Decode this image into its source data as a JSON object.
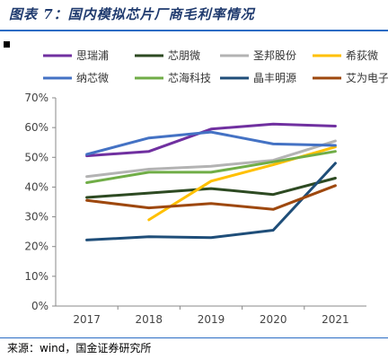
{
  "figure_title": "图表 7：国内模拟芯片厂商毛利率情况",
  "source": "来源：wind，国金证券研究所",
  "chart_data": {
    "type": "line",
    "title": "",
    "xlabel": "",
    "ylabel": "",
    "x": [
      "2017",
      "2018",
      "2019",
      "2020",
      "2021"
    ],
    "y_ticks": [
      "0%",
      "10%",
      "20%",
      "30%",
      "40%",
      "50%",
      "60%",
      "70%"
    ],
    "ylim": [
      0,
      70
    ],
    "grid": false,
    "legend_position": "top",
    "series": [
      {
        "name": "思瑞浦",
        "color": "#7030a0",
        "values": [
          50.5,
          52.0,
          59.5,
          61.2,
          60.5
        ]
      },
      {
        "name": "芯朋微",
        "color": "#2d4a22",
        "values": [
          36.5,
          38.0,
          39.5,
          37.5,
          43.0
        ]
      },
      {
        "name": "圣邦股份",
        "color": "#b3b3b3",
        "values": [
          43.5,
          46.0,
          47.0,
          49.0,
          55.5
        ]
      },
      {
        "name": "希荻微",
        "color": "#ffc000",
        "values": [
          null,
          29.0,
          42.0,
          47.5,
          53.5
        ]
      },
      {
        "name": "纳芯微",
        "color": "#4472c4",
        "values": [
          51.0,
          56.5,
          58.5,
          54.5,
          54.0
        ]
      },
      {
        "name": "芯海科技",
        "color": "#70ad47",
        "values": [
          41.5,
          45.0,
          45.0,
          48.5,
          52.0
        ]
      },
      {
        "name": "晶丰明源",
        "color": "#1f4e79",
        "values": [
          22.2,
          23.3,
          23.0,
          25.5,
          48.0
        ]
      },
      {
        "name": "艾为电子",
        "color": "#9e480e",
        "values": [
          35.5,
          33.0,
          34.5,
          32.5,
          40.5
        ]
      }
    ]
  }
}
